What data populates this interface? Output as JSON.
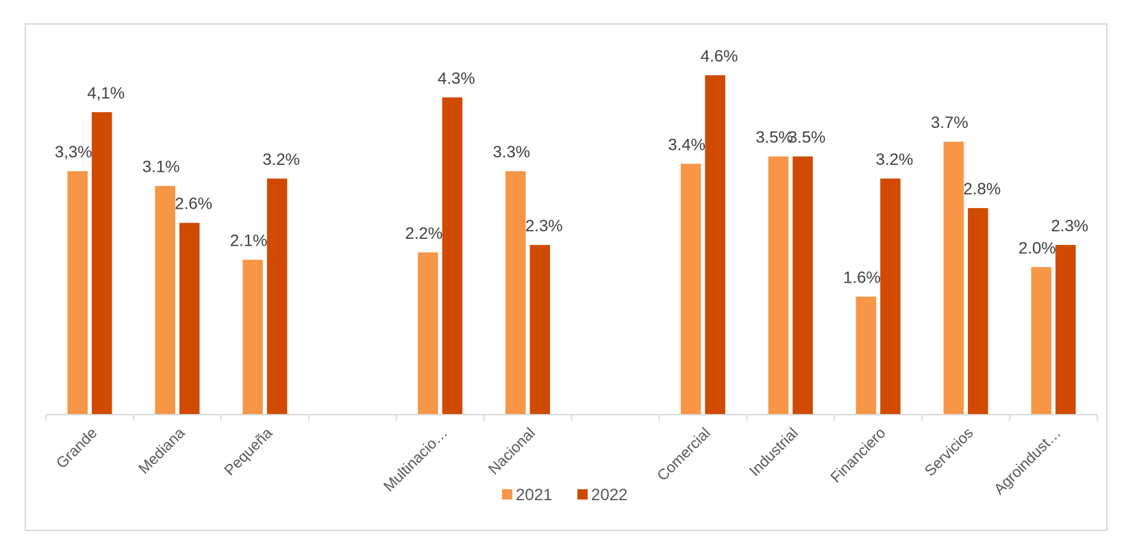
{
  "chart_data": {
    "type": "bar",
    "title": "",
    "xlabel": "",
    "ylabel": "",
    "ylim": [
      0,
      4.6
    ],
    "grid": false,
    "legend_position": "bottom-center",
    "categories": [
      "Grande",
      "Mediana",
      "Pequeña",
      "",
      "Multinacio…",
      "Nacional",
      "",
      "Comercial",
      "Industrial",
      "Financiero",
      "Servicios",
      "Agroindust…"
    ],
    "series": [
      {
        "name": "2021",
        "color": "#F79646",
        "values": [
          3.3,
          3.1,
          2.1,
          null,
          2.2,
          3.3,
          null,
          3.4,
          3.5,
          1.6,
          3.7,
          2.0
        ],
        "labels": [
          "3,3%",
          "3.1%",
          "2.1%",
          "",
          "2.2%",
          "3.3%",
          "",
          "3.4%",
          "3.5%",
          "1.6%",
          "3.7%",
          "2.0%"
        ]
      },
      {
        "name": "2022",
        "color": "#D04A02",
        "values": [
          4.1,
          2.6,
          3.2,
          null,
          4.3,
          2.3,
          null,
          4.6,
          3.5,
          3.2,
          2.8,
          2.3
        ],
        "labels": [
          "4,1%",
          "2.6%",
          "3.2%",
          "",
          "4.3%",
          "2.3%",
          "",
          "4.6%",
          "3.5%",
          "3.2%",
          "2.8%",
          "2.3%"
        ]
      }
    ]
  }
}
